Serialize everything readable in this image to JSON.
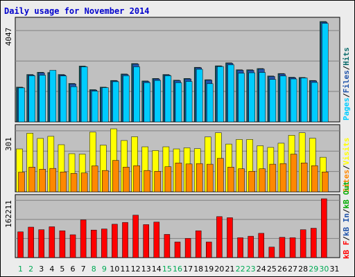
{
  "chart_data": {
    "type": "bar",
    "title": "Daily usage for November 2014",
    "days": [
      "1",
      "2",
      "3",
      "4",
      "5",
      "6",
      "7",
      "8",
      "9",
      "10",
      "11",
      "12",
      "13",
      "14",
      "15",
      "16",
      "17",
      "18",
      "19",
      "20",
      "21",
      "22",
      "23",
      "24",
      "25",
      "26",
      "27",
      "28",
      "29",
      "30",
      "31"
    ],
    "weekend_days": [
      "1",
      "2",
      "8",
      "9",
      "15",
      "16",
      "22",
      "23",
      "29",
      "30"
    ],
    "panels": [
      {
        "name": "pages-files-hits",
        "max_label": "4047",
        "ylim": [
          0,
          4047
        ],
        "series": [
          {
            "name": "Hits",
            "color": "#0f6e6e",
            "values": [
              1400,
              1910,
              2000,
              1990,
              1910,
              1550,
              2250,
              1300,
              1400,
              1670,
              1930,
              2350,
              1650,
              1750,
              1910,
              1680,
              1750,
              2200,
              1700,
              2260,
              2380,
              2100,
              2100,
              2150,
              1850,
              1950,
              1800,
              1790,
              1670,
              4047
            ]
          },
          {
            "name": "Files",
            "color": "#2255aa",
            "values": [
              1380,
              1890,
              1980,
              1970,
              1890,
              1530,
              2230,
              1280,
              1380,
              1650,
              1910,
              2330,
              1630,
              1730,
              1890,
              1660,
              1730,
              2180,
              1680,
              2240,
              2360,
              2080,
              2080,
              2130,
              1830,
              1930,
              1780,
              1770,
              1650,
              4020
            ]
          },
          {
            "name": "Pages",
            "color": "#00ccff",
            "values": [
              1370,
              1860,
              1880,
              2080,
              1850,
              1420,
              2220,
              1240,
              1380,
              1620,
              1860,
              2220,
              1580,
              1670,
              1860,
              1580,
              1630,
              2120,
              1540,
              2230,
              2300,
              1960,
              1980,
              1990,
              1710,
              1850,
              1730,
              1770,
              1590,
              3970
            ]
          }
        ],
        "legend": [
          "Pages",
          "Files",
          "Hits"
        ]
      },
      {
        "name": "visits-sites",
        "max_label": "301",
        "ylim": [
          0,
          301
        ],
        "series": [
          {
            "name": "Visits",
            "color": "#ffff00",
            "values": [
              205,
              280,
              255,
              265,
              225,
              182,
              180,
              285,
              223,
              301,
              245,
              263,
              215,
              197,
              215,
              205,
              210,
              206,
              262,
              282,
              228,
              250,
              250,
              220,
              212,
              232,
              270,
              282,
              256,
              165
            ]
          },
          {
            "name": "Sites",
            "color": "#ff8800",
            "values": [
              94,
              118,
              108,
              112,
              95,
              88,
              90,
              124,
              102,
              150,
              118,
              125,
              102,
              98,
              120,
              138,
              133,
              135,
              132,
              160,
              118,
              110,
              98,
              110,
              132,
              135,
              180,
              138,
              125,
              95
            ]
          }
        ],
        "legend": [
          "Visits",
          "Sites"
        ]
      },
      {
        "name": "kbytes",
        "max_label": "162211",
        "ylim": [
          0,
          162211
        ],
        "series": [
          {
            "name": "kB F",
            "color": "#ff0000",
            "values": [
              71000,
              84000,
              77000,
              85000,
              74000,
              63000,
              104000,
              76000,
              79000,
              92000,
              97000,
              117000,
              91000,
              98000,
              64000,
              43000,
              53000,
              74000,
              43000,
              113000,
              110000,
              55000,
              59000,
              67000,
              29000,
              56000,
              55000,
              77000,
              81000,
              162211
            ]
          }
        ],
        "legend": [
          "kB F",
          "kB In",
          "kB Out"
        ]
      }
    ]
  }
}
